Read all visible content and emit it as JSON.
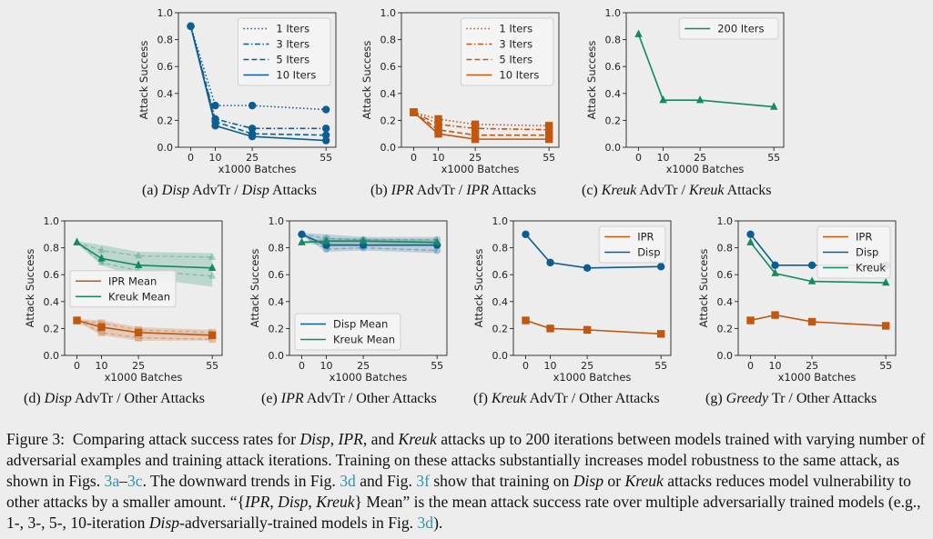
{
  "colors": {
    "disp": "#0c5e91",
    "ipr": "#c0580f",
    "kreuk": "#138a62"
  },
  "captions": {
    "a": "(a) Disp AdvTr / Disp Attacks",
    "b": "(b) IPR AdvTr / IPR Attacks",
    "c": "(c) Kreuk AdvTr / Kreuk Attacks",
    "d": "(d) Disp AdvTr / Other Attacks",
    "e": "(e) IPR AdvTr / Other Attacks",
    "f": "(f) Kreuk AdvTr / Other Attacks",
    "g": "(g) Greedy Tr / Other Attacks"
  },
  "figure_caption": {
    "label": "Figure 3:",
    "text": "Comparing attack success rates for Disp, IPR, and Kreuk attacks up to 200 iterations between models trained with varying number of adversarial examples and training attack iterations. Training on these attacks substantially increases model robustness to the same attack, as shown in Figs. 3a–3c. The downward trends in Fig. 3d and Fig. 3f show that training on Disp or Kreuk attacks reduces model vulnerability to other attacks by a smaller amount. “{IPR, Disp, Kreuk} Mean” is the mean attack success rate over multiple adversarially trained models (e.g., 1-, 3-, 5-, 10-iteration Disp-adversarially-trained models in Fig. 3d)."
  },
  "chart_data": [
    {
      "id": "a",
      "type": "line",
      "xlabel": "x1000 Batches",
      "ylabel": "Attack Success",
      "x": [
        0,
        10,
        25,
        55
      ],
      "ylim": [
        0,
        1
      ],
      "yticks": [
        "0.0",
        "0.2",
        "0.4",
        "0.6",
        "0.8",
        "1.0"
      ],
      "legend": "top-right",
      "series": [
        {
          "name": "1 Iters",
          "color": "disp",
          "dash": "dotted",
          "marker": "circle",
          "values": [
            0.9,
            0.31,
            0.31,
            0.28
          ]
        },
        {
          "name": "3 Iters",
          "color": "disp",
          "dash": "dashdot",
          "marker": "circle",
          "values": [
            0.9,
            0.21,
            0.14,
            0.14
          ]
        },
        {
          "name": "5 Iters",
          "color": "disp",
          "dash": "dashed",
          "marker": "circle",
          "values": [
            0.9,
            0.19,
            0.1,
            0.09
          ]
        },
        {
          "name": "10 Iters",
          "color": "disp",
          "dash": "solid",
          "marker": "circle",
          "values": [
            0.9,
            0.16,
            0.08,
            0.05
          ]
        }
      ]
    },
    {
      "id": "b",
      "type": "line",
      "xlabel": "x1000 Batches",
      "ylabel": "Attack Success",
      "x": [
        0,
        10,
        25,
        55
      ],
      "ylim": [
        0,
        1
      ],
      "yticks": [
        "0.0",
        "0.2",
        "0.4",
        "0.6",
        "0.8",
        "1.0"
      ],
      "legend": "top-right",
      "series": [
        {
          "name": "1 Iters",
          "color": "ipr",
          "dash": "dotted",
          "marker": "square",
          "values": [
            0.26,
            0.21,
            0.17,
            0.16
          ]
        },
        {
          "name": "3 Iters",
          "color": "ipr",
          "dash": "dashdot",
          "marker": "square",
          "values": [
            0.26,
            0.17,
            0.14,
            0.13
          ]
        },
        {
          "name": "5 Iters",
          "color": "ipr",
          "dash": "dashed",
          "marker": "square",
          "values": [
            0.26,
            0.13,
            0.09,
            0.09
          ]
        },
        {
          "name": "10 Iters",
          "color": "ipr",
          "dash": "solid",
          "marker": "square",
          "values": [
            0.26,
            0.1,
            0.06,
            0.06
          ]
        }
      ]
    },
    {
      "id": "c",
      "type": "line",
      "xlabel": "x1000 Batches",
      "ylabel": "Attack Success",
      "x": [
        0,
        10,
        25,
        55
      ],
      "ylim": [
        0,
        1
      ],
      "yticks": [
        "0.0",
        "0.2",
        "0.4",
        "0.6",
        "0.8",
        "1.0"
      ],
      "legend": "top-right",
      "series": [
        {
          "name": "200 Iters",
          "color": "kreuk",
          "dash": "solid",
          "marker": "triangle",
          "values": [
            0.84,
            0.35,
            0.35,
            0.3
          ]
        }
      ]
    },
    {
      "id": "d",
      "type": "line",
      "xlabel": "x1000 Batches",
      "ylabel": "Attack Success",
      "x": [
        0,
        10,
        25,
        55
      ],
      "ylim": [
        0,
        1
      ],
      "yticks": [
        "0.0",
        "0.2",
        "0.4",
        "0.6",
        "0.8",
        "1.0"
      ],
      "legend": "center-left",
      "series": [
        {
          "name": "IPR Mean",
          "color": "ipr",
          "dash": "solid",
          "marker": "square",
          "values": [
            0.26,
            0.21,
            0.17,
            0.15
          ],
          "band_low": [
            0.25,
            0.15,
            0.11,
            0.11
          ],
          "band_high": [
            0.27,
            0.26,
            0.21,
            0.19
          ],
          "faint_lines": [
            [
              0.26,
              0.17,
              0.13,
              0.12
            ],
            [
              0.26,
              0.24,
              0.19,
              0.17
            ]
          ]
        },
        {
          "name": "Kreuk Mean",
          "color": "kreuk",
          "dash": "solid",
          "marker": "triangle",
          "values": [
            0.84,
            0.72,
            0.67,
            0.65
          ],
          "band_low": [
            0.83,
            0.67,
            0.58,
            0.51
          ],
          "band_high": [
            0.85,
            0.82,
            0.77,
            0.76
          ],
          "faint_lines": [
            [
              0.84,
              0.78,
              0.74,
              0.73
            ],
            [
              0.84,
              0.69,
              0.63,
              0.59
            ]
          ]
        }
      ]
    },
    {
      "id": "e",
      "type": "line",
      "xlabel": "x1000 Batches",
      "ylabel": "Attack Success",
      "x": [
        0,
        10,
        25,
        55
      ],
      "ylim": [
        0,
        1
      ],
      "yticks": [
        "0.0",
        "0.2",
        "0.4",
        "0.6",
        "0.8",
        "1.0"
      ],
      "legend": "bottom-left",
      "series": [
        {
          "name": "Disp Mean",
          "color": "disp",
          "dash": "solid",
          "marker": "circle",
          "values": [
            0.9,
            0.82,
            0.82,
            0.82
          ],
          "band_low": [
            0.89,
            0.77,
            0.78,
            0.76
          ],
          "band_high": [
            0.91,
            0.9,
            0.88,
            0.88
          ],
          "faint_lines": [
            [
              0.9,
              0.87,
              0.86,
              0.86
            ],
            [
              0.9,
              0.79,
              0.8,
              0.78
            ]
          ]
        },
        {
          "name": "Kreuk Mean",
          "color": "kreuk",
          "dash": "solid",
          "marker": "triangle",
          "values": [
            0.84,
            0.85,
            0.85,
            0.84
          ],
          "band_low": [
            0.83,
            0.82,
            0.83,
            0.82
          ],
          "band_high": [
            0.85,
            0.87,
            0.87,
            0.86
          ],
          "faint_lines": []
        }
      ]
    },
    {
      "id": "f",
      "type": "line",
      "xlabel": "x1000 Batches",
      "ylabel": "Attack Success",
      "x": [
        0,
        10,
        25,
        55
      ],
      "ylim": [
        0,
        1
      ],
      "yticks": [
        "0.0",
        "0.2",
        "0.4",
        "0.6",
        "0.8",
        "1.0"
      ],
      "legend": "top-right",
      "series": [
        {
          "name": "IPR",
          "color": "ipr",
          "dash": "solid",
          "marker": "square",
          "values": [
            0.26,
            0.2,
            0.19,
            0.16
          ]
        },
        {
          "name": "Disp",
          "color": "disp",
          "dash": "solid",
          "marker": "circle",
          "values": [
            0.9,
            0.69,
            0.65,
            0.66
          ]
        }
      ]
    },
    {
      "id": "g",
      "type": "line",
      "xlabel": "x1000 Batches",
      "ylabel": "Attack Success",
      "x": [
        0,
        10,
        25,
        55
      ],
      "ylim": [
        0,
        1
      ],
      "yticks": [
        "0.0",
        "0.2",
        "0.4",
        "0.6",
        "0.8",
        "1.0"
      ],
      "legend": "top-right",
      "series": [
        {
          "name": "IPR",
          "color": "ipr",
          "dash": "solid",
          "marker": "square",
          "values": [
            0.26,
            0.3,
            0.25,
            0.22
          ]
        },
        {
          "name": "Disp",
          "color": "disp",
          "dash": "solid",
          "marker": "circle",
          "values": [
            0.9,
            0.67,
            0.67,
            0.67
          ]
        },
        {
          "name": "Kreuk",
          "color": "kreuk",
          "dash": "solid",
          "marker": "triangle",
          "values": [
            0.84,
            0.61,
            0.55,
            0.54
          ]
        }
      ]
    }
  ]
}
